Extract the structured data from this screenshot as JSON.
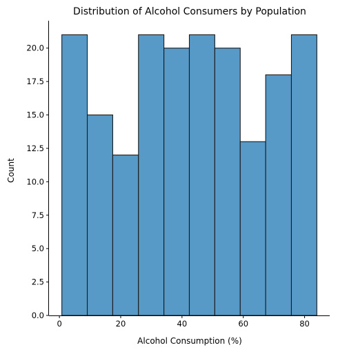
{
  "chart_data": {
    "type": "bar",
    "subtype": "histogram",
    "title": "Distribution of Alcohol Consumers by Population",
    "xlabel": "Alcohol Consumption (%)",
    "ylabel": "Count",
    "bins": [
      {
        "start": 0.8,
        "end": 9.1,
        "count": 21
      },
      {
        "start": 9.1,
        "end": 17.4,
        "count": 15
      },
      {
        "start": 17.4,
        "end": 25.8,
        "count": 12
      },
      {
        "start": 25.8,
        "end": 34.1,
        "count": 21
      },
      {
        "start": 34.1,
        "end": 42.4,
        "count": 20
      },
      {
        "start": 42.4,
        "end": 50.7,
        "count": 21
      },
      {
        "start": 50.7,
        "end": 59.0,
        "count": 20
      },
      {
        "start": 59.0,
        "end": 67.3,
        "count": 13
      },
      {
        "start": 67.3,
        "end": 75.7,
        "count": 18
      },
      {
        "start": 75.7,
        "end": 84.0,
        "count": 21
      }
    ],
    "xlim": [
      -3.4,
      88.2
    ],
    "ylim": [
      0,
      22.05
    ],
    "xticks": [
      0,
      20,
      40,
      60,
      80
    ],
    "xtick_labels": [
      "0",
      "20",
      "40",
      "60",
      "80"
    ],
    "yticks": [
      0,
      2.5,
      5,
      7.5,
      10,
      12.5,
      15,
      17.5,
      20
    ],
    "ytick_labels": [
      "0.0",
      "2.5",
      "5.0",
      "7.5",
      "10.0",
      "12.5",
      "15.0",
      "17.5",
      "20.0"
    ],
    "grid": false,
    "legend": "none",
    "colors": {
      "bar_fill": "#5799c7",
      "bar_edge": "#1a1a1a",
      "axis": "#000000"
    }
  }
}
